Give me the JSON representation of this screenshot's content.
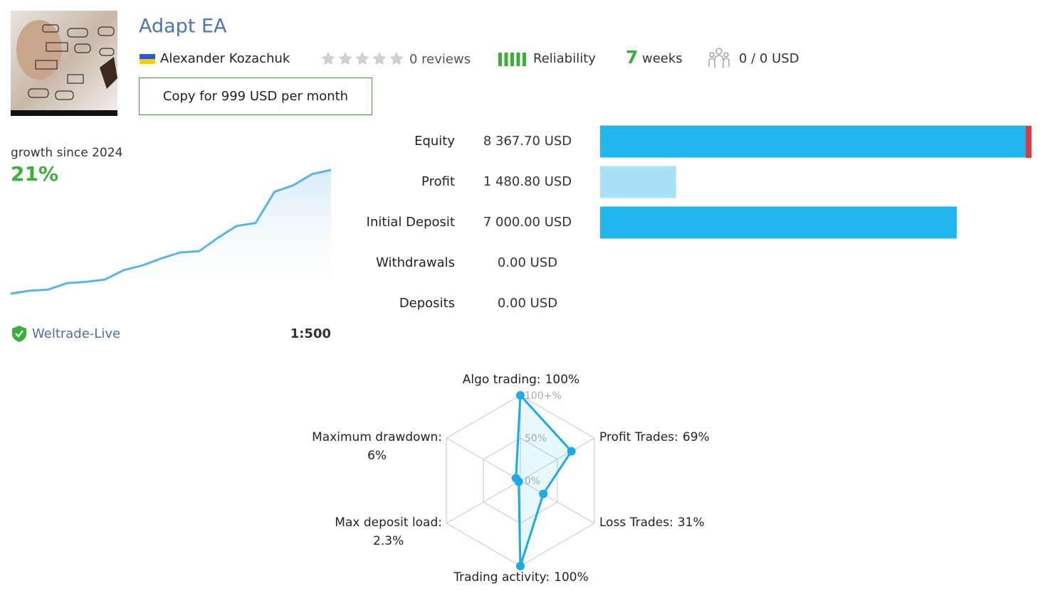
{
  "header": {
    "title": "Adapt EA",
    "author": "Alexander Kozachuk",
    "reviews": "0 reviews",
    "reliability": "Reliability",
    "weeks_number": "7",
    "weeks_label": "weeks",
    "subscribers": "0 / 0 USD",
    "copy_button": "Copy for 999 USD per month"
  },
  "growth": {
    "label": "growth since 2024",
    "value": "21%",
    "curve": [
      0,
      0.5,
      0.7,
      1.8,
      2.0,
      2.4,
      4.0,
      4.8,
      6.0,
      7.0,
      7.2,
      9.5,
      11.5,
      12.0,
      17.3,
      18.4,
      20.3,
      21
    ],
    "color": "#5ab4e8"
  },
  "account": {
    "broker": "Weltrade-Live",
    "leverage": "1:500"
  },
  "balance": {
    "rows": [
      {
        "label": "Equity",
        "amount": 8367.7,
        "amount_label": "8 367.70 USD",
        "color": "#22b7ee"
      },
      {
        "label": "Profit",
        "amount": 1480.79,
        "amount_label": "1 480.80 USD",
        "color": "#a8e0f7"
      },
      {
        "label": "Initial Deposit",
        "amount": 7000.0,
        "amount_label": "7 000.00 USD",
        "color": "#22b7ee"
      },
      {
        "label": "Withdrawals",
        "amount": 0.0,
        "amount_label": "0.00 USD",
        "color": "#a8e0f7"
      },
      {
        "label": "Deposits",
        "amount": 0.0,
        "amount_label": "0.00 USD",
        "color": "#a8e0f7"
      }
    ],
    "loss_color": "#e0383e"
  },
  "radar": {
    "labels": [
      "Algo trading:",
      "Profit Trades:",
      "Loss Trades:",
      "Trading activity:",
      "Max deposit load:",
      "Maximum drawdown:"
    ],
    "values": [
      100,
      69,
      31,
      100,
      2.3,
      6
    ],
    "value_labels": [
      "100%",
      "69%",
      "31%",
      "100%",
      "2.3%",
      "6%"
    ],
    "rlim": [
      0,
      100
    ],
    "rticks": [
      {
        "value": 0,
        "label": "0%"
      },
      {
        "value": 50,
        "label": "50%"
      },
      {
        "value": 100,
        "label": "100+%"
      }
    ],
    "color": "#1aabe6"
  }
}
